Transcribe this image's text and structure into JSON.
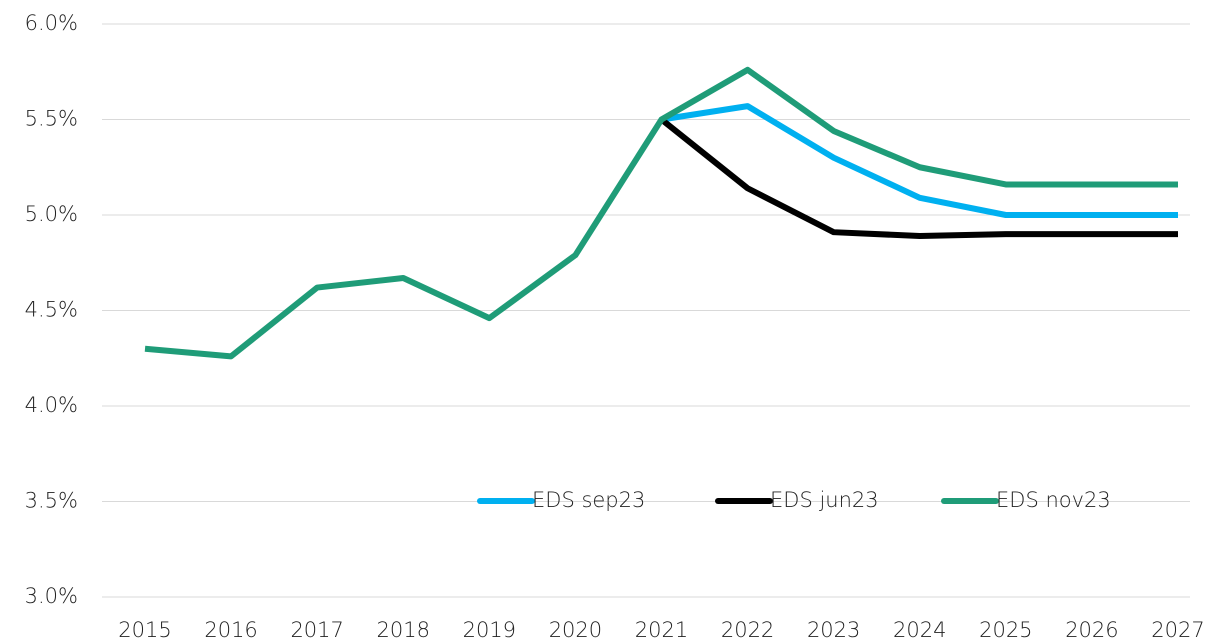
{
  "chart_data": {
    "type": "line",
    "categories": [
      "2015",
      "2016",
      "2017",
      "2018",
      "2019",
      "2020",
      "2021",
      "2022",
      "2023",
      "2024",
      "2025",
      "2026",
      "2027"
    ],
    "series": [
      {
        "name": "EDS sep23",
        "color": "#00b0f0",
        "values": [
          null,
          null,
          null,
          null,
          null,
          null,
          5.5,
          5.57,
          5.3,
          5.09,
          5.0,
          5.0,
          5.0
        ]
      },
      {
        "name": "EDS jun23",
        "color": "#000000",
        "values": [
          null,
          null,
          null,
          null,
          null,
          null,
          5.5,
          5.14,
          4.91,
          4.89,
          4.9,
          4.9,
          4.9
        ]
      },
      {
        "name": "EDS nov23",
        "color": "#1f9c78",
        "values": [
          4.3,
          4.26,
          4.62,
          4.67,
          4.46,
          4.79,
          5.5,
          5.76,
          5.44,
          5.25,
          5.16,
          5.16,
          5.16
        ]
      }
    ],
    "ylim": [
      3.0,
      6.0
    ],
    "yticks": [
      {
        "value": 3.0,
        "label": "3.0%"
      },
      {
        "value": 3.5,
        "label": "3.5%"
      },
      {
        "value": 4.0,
        "label": "4.0%"
      },
      {
        "value": 4.5,
        "label": "4.5%"
      },
      {
        "value": 5.0,
        "label": "5.0%"
      },
      {
        "value": 5.5,
        "label": "5.5%"
      },
      {
        "value": 6.0,
        "label": "6.0%"
      }
    ],
    "grid": true
  }
}
